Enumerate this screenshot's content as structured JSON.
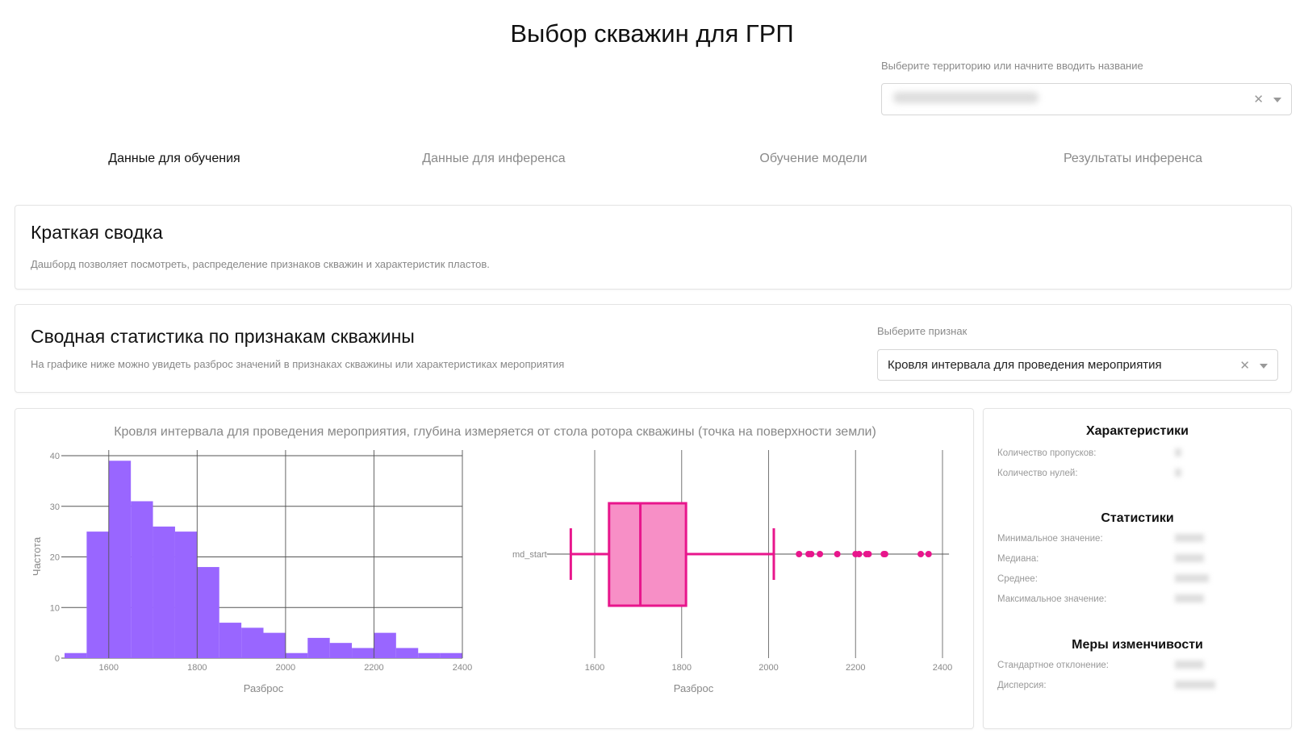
{
  "page_title": "Выбор скважин для ГРП",
  "territory": {
    "label": "Выберите территорию или начните вводить название",
    "clear_icon": "close-icon",
    "arrow_icon": "chevron-down-icon"
  },
  "tabs": [
    {
      "label": "Данные для обучения",
      "active": true
    },
    {
      "label": "Данные для инференса",
      "active": false
    },
    {
      "label": "Обучение модели",
      "active": false
    },
    {
      "label": "Результаты инференса",
      "active": false
    }
  ],
  "summary": {
    "title": "Краткая сводка",
    "description": "Дашборд позволяет посмотреть, распределение признаков скважин и характеристик пластов."
  },
  "feature_stats": {
    "title": "Сводная статистика по признакам скважины",
    "description": "На графике ниже можно увидеть разброс значений в признаках скважины или характеристиках мероприятия",
    "select_label": "Выберите признак",
    "selected": "Кровля интервала для проведения мероприятия"
  },
  "chart_title": "Кровля интервала для проведения мероприятия, глубина измеряется от стола ротора скважины (точка на поверхности земли)",
  "chart_data": [
    {
      "type": "bar",
      "subtype": "histogram",
      "color": "#9966ff",
      "bin_edges": [
        1500,
        1550,
        1600,
        1650,
        1700,
        1750,
        1800,
        1850,
        1900,
        1950,
        2000,
        2050,
        2100,
        2150,
        2200,
        2250,
        2300,
        2350,
        2400
      ],
      "values": [
        1,
        25,
        39,
        31,
        26,
        25,
        18,
        7,
        6,
        5,
        1,
        4,
        3,
        2,
        5,
        2,
        1,
        1
      ],
      "xlabel": "Разброс",
      "ylabel": "Частота",
      "xlim": [
        1500,
        2400
      ],
      "ylim": [
        0,
        40
      ],
      "xticks": [
        "1600",
        "1800",
        "2000",
        "2200",
        "2400"
      ],
      "yticks": [
        "0",
        "10",
        "20",
        "30",
        "40"
      ],
      "grid": true
    },
    {
      "type": "box",
      "color": "#e8168c",
      "fill": "#f78fc6",
      "category": "md_start",
      "lower_whisker": 1545,
      "q1": 1633,
      "median": 1705,
      "q3": 1810,
      "upper_whisker": 2012,
      "outliers": [
        2070,
        2092,
        2098,
        2118,
        2158,
        2200,
        2208,
        2225,
        2230,
        2265,
        2268,
        2350,
        2368
      ],
      "xlabel": "Разброс",
      "xlim": [
        1490,
        2415
      ],
      "xticks": [
        "1600",
        "1800",
        "2000",
        "2200",
        "2400"
      ],
      "grid": true
    }
  ],
  "stats": {
    "characteristics_title": "Характеристики",
    "characteristics": [
      "Количество пропусков:",
      "Количество нулей:"
    ],
    "statistics_title": "Статистики",
    "statistics": [
      "Минимальное значение:",
      "Медиана:",
      "Среднее:",
      "Максимальное значение:"
    ],
    "variability_title": "Меры изменчивости",
    "variability": [
      "Стандартное отклонение:",
      "Дисперсия:"
    ]
  }
}
